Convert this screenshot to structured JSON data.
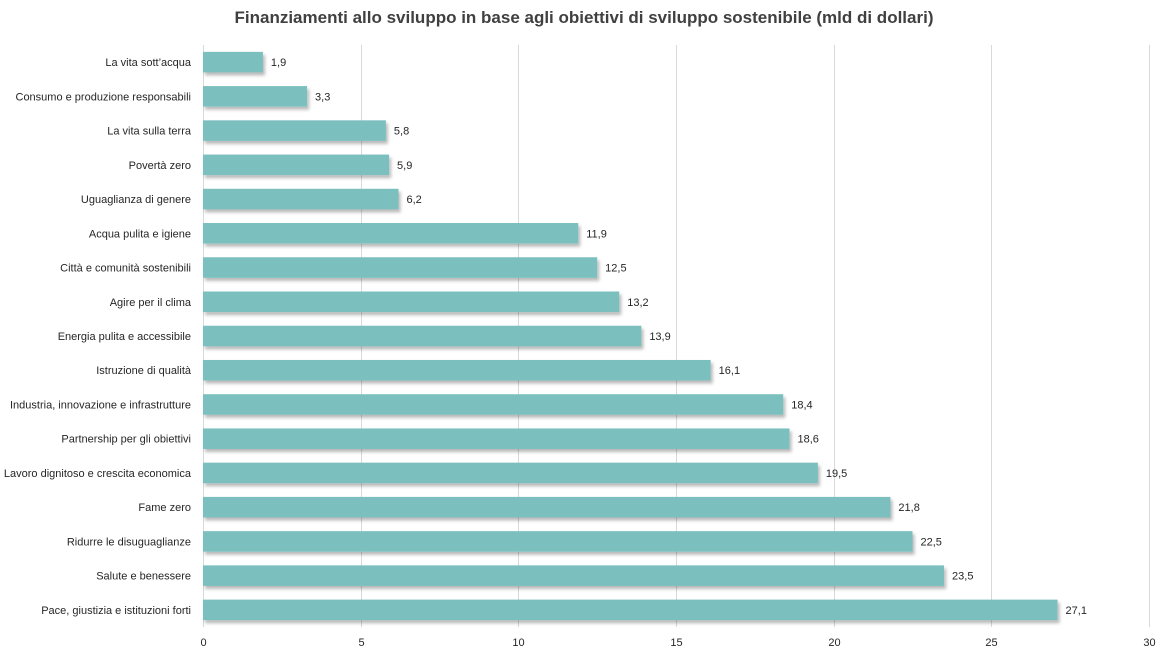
{
  "chart_data": {
    "type": "bar",
    "orientation": "horizontal",
    "title": "Finanziamenti allo sviluppo in base agli obiettivi di sviluppo sostenibile (mld di dollari)",
    "xlabel": "",
    "ylabel": "",
    "xlim": [
      0,
      30
    ],
    "ticks": [
      0,
      5,
      10,
      15,
      20,
      25,
      30
    ],
    "grid": true,
    "bar_color": "#7bbfbf",
    "categories": [
      "La vita sott’acqua",
      "Consumo e produzione responsabili",
      "La vita sulla terra",
      "Povertà zero",
      "Uguaglianza di genere",
      "Acqua pulita e igiene",
      "Città e comunità sostenibili",
      "Agire per il clima",
      "Energia pulita e accessibile",
      "Istruzione di qualità",
      "Industria, innovazione e infrastrutture",
      "Partnership per gli obiettivi",
      "Lavoro dignitoso e crescita economica",
      "Fame zero",
      "Ridurre le disuguaglianze",
      "Salute e benessere",
      "Pace, giustizia e istituzioni forti"
    ],
    "values": [
      1.9,
      3.3,
      5.8,
      5.9,
      6.2,
      11.9,
      12.5,
      13.2,
      13.9,
      16.1,
      18.4,
      18.6,
      19.5,
      21.8,
      22.5,
      23.5,
      27.1
    ],
    "value_labels": [
      "1,9",
      "3,3",
      "5,8",
      "5,9",
      "6,2",
      "11,9",
      "12,5",
      "13,2",
      "13,9",
      "16,1",
      "18,4",
      "18,6",
      "19,5",
      "21,8",
      "22,5",
      "23,5",
      "27,1"
    ]
  }
}
